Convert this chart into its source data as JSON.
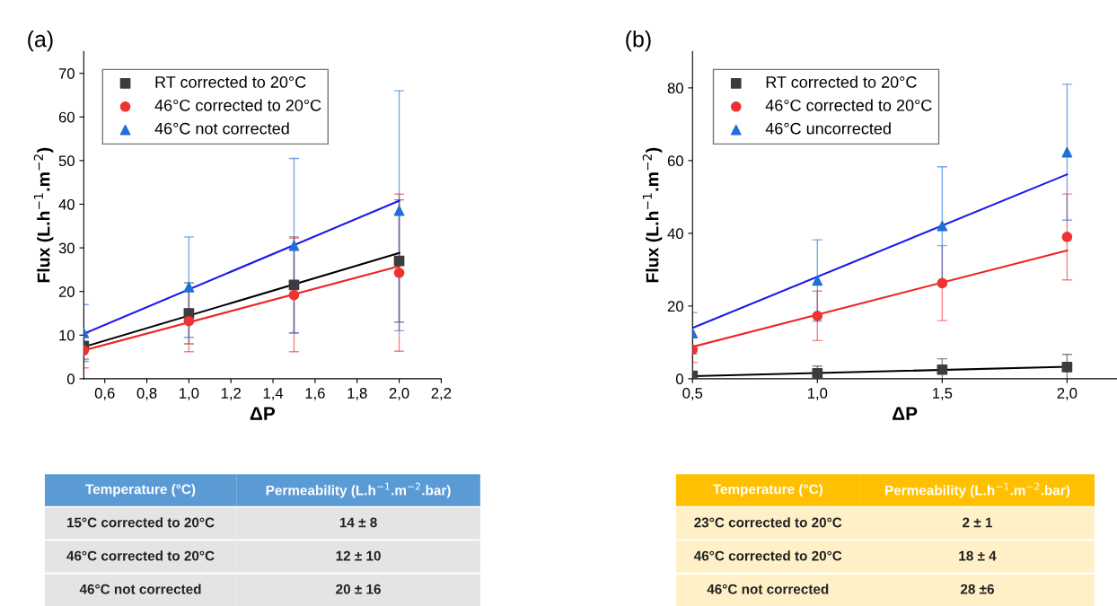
{
  "chart_data": [
    {
      "type": "scatter",
      "title": "(a)",
      "xlabel": "ΔP",
      "ylabel": "Flux (L.h$^{−1}$.m$^{−2}$)",
      "xlim": [
        0.5,
        2.2
      ],
      "xticks": [
        {
          "value": 0.6,
          "label": "0,6"
        },
        {
          "value": 0.8,
          "label": "0,8"
        },
        {
          "value": 1.0,
          "label": "1,0"
        },
        {
          "value": 1.2,
          "label": "1,2"
        },
        {
          "value": 1.4,
          "label": "1,4"
        },
        {
          "value": 1.6,
          "label": "1,6"
        },
        {
          "value": 1.8,
          "label": "1,8"
        },
        {
          "value": 2.0,
          "label": "2,0"
        },
        {
          "value": 2.2,
          "label": "2,2"
        }
      ],
      "ylim": [
        0,
        75
      ],
      "yticks": [
        0,
        10,
        20,
        30,
        40,
        50,
        60,
        70
      ],
      "legend": "top left",
      "grid": false,
      "series": [
        {
          "type": "line",
          "color": "#000000",
          "x": [
            0.5,
            2.0
          ],
          "values": [
            7.3,
            28.8
          ]
        },
        {
          "type": "line",
          "color": "#ee2222",
          "x": [
            0.5,
            2.0
          ],
          "values": [
            6.5,
            25.8
          ]
        },
        {
          "type": "line",
          "color": "#1a1aee",
          "x": [
            0.5,
            2.0
          ],
          "values": [
            10.3,
            40.8
          ]
        },
        {
          "name": "RT corrected to 20°C",
          "color": "#3c3c3c",
          "marker": "square",
          "x": [
            0.5,
            1.0,
            1.5,
            2.0
          ],
          "values": [
            7.5,
            15,
            21.5,
            27
          ],
          "errors": [
            3,
            7,
            11,
            14
          ]
        },
        {
          "name": "46°C corrected to 20°C",
          "color": "#ee3333",
          "marker": "circle",
          "x": [
            0.5,
            1.0,
            1.5,
            2.0
          ],
          "values": [
            6.5,
            13.2,
            19.2,
            24.3
          ],
          "errors": [
            4,
            7,
            13,
            18
          ]
        },
        {
          "name": "46°C not corrected",
          "color": "#1f6fd8",
          "marker": "triangle",
          "x": [
            0.5,
            1.0,
            1.5,
            2.0
          ],
          "values": [
            10.5,
            21,
            30.5,
            38.5
          ],
          "errors": [
            6.5,
            11.5,
            20,
            27.5
          ]
        }
      ]
    },
    {
      "type": "scatter",
      "title": "(b)",
      "xlabel": "ΔP",
      "ylabel": "Flux (L.h$^{−1}$.m$^{−2}$)",
      "xlim": [
        0.5,
        2.2
      ],
      "xticks": [
        {
          "value": 0.5,
          "label": "0,5"
        },
        {
          "value": 1.0,
          "label": "1,0"
        },
        {
          "value": 1.5,
          "label": "1,5"
        },
        {
          "value": 2.0,
          "label": "2,0"
        }
      ],
      "ylim": [
        0,
        90
      ],
      "yticks": [
        0,
        20,
        40,
        60,
        80
      ],
      "legend": "top left",
      "grid": false,
      "series": [
        {
          "type": "line",
          "color": "#000000",
          "x": [
            0.5,
            2.0
          ],
          "values": [
            0.7,
            3.3
          ]
        },
        {
          "type": "line",
          "color": "#ee2222",
          "x": [
            0.5,
            2.0
          ],
          "values": [
            8.8,
            35.3
          ]
        },
        {
          "type": "line",
          "color": "#1a1aee",
          "x": [
            0.5,
            2.0
          ],
          "values": [
            14,
            56.2
          ]
        },
        {
          "name": "RT corrected to 20°C",
          "color": "#3c3c3c",
          "marker": "square",
          "x": [
            0.5,
            1.0,
            1.5,
            2.0
          ],
          "values": [
            0.8,
            1.5,
            2.5,
            3.2
          ],
          "errors": [
            1,
            2,
            3,
            3.5
          ]
        },
        {
          "name": "46°C corrected to 20°C",
          "color": "#ee3333",
          "marker": "circle",
          "x": [
            0.5,
            1.0,
            1.5,
            2.0
          ],
          "values": [
            8,
            17.3,
            26.3,
            39
          ],
          "errors": [
            3.5,
            6.8,
            10.3,
            11.8
          ]
        },
        {
          "name": "46°C uncorrected",
          "color": "#1f6fd8",
          "marker": "triangle",
          "x": [
            0.5,
            1.0,
            1.5,
            2.0
          ],
          "values": [
            12.5,
            27,
            42,
            62.3
          ],
          "errors": [
            5.7,
            11.2,
            16.3,
            18.7
          ]
        }
      ]
    },
    {
      "type": "other",
      "colors": [
        "#5b9bd5",
        "#e4e4e4"
      ],
      "annotations": [
        "Temperature (°C)",
        "Permeability (L.h$^{−1}$.m$^{−2}$.bar)",
        "15°C corrected to 20°C",
        "14 ± 8",
        "46°C corrected to 20°C",
        "12 ± 10",
        "46°C not corrected",
        "20 ± 16"
      ]
    },
    {
      "type": "other",
      "colors": [
        "#ffc000",
        "#fff0c8"
      ],
      "annotations": [
        "Temperature (°C)",
        "Permeability (L.h$^{−1}$.m$^{−2}$.bar)",
        "23°C corrected to 20°C",
        "2 ± 1",
        "46°C corrected to 20°C",
        "18 ± 4",
        "46°C not corrected",
        "28 ±6"
      ]
    }
  ]
}
